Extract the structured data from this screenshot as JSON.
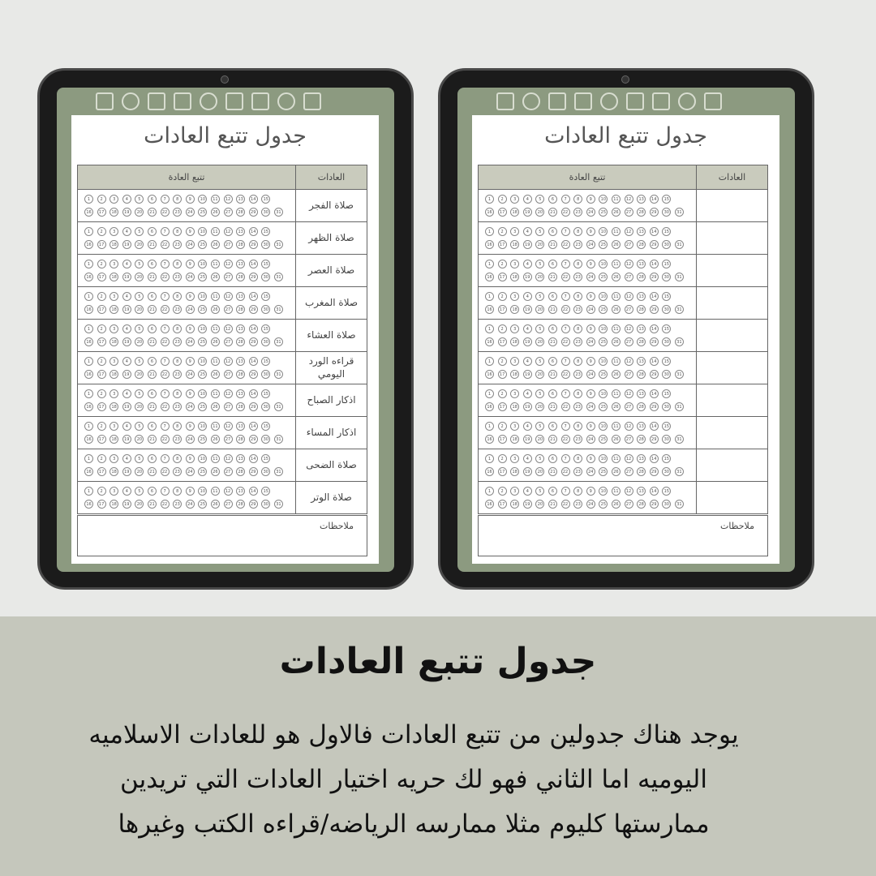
{
  "tablets": [
    {
      "title": "جدول تتبع العادات",
      "header": {
        "habits": "العادات",
        "tracking": "تتبع العادة"
      },
      "rows": [
        "صلاة الفجر",
        "صلاة الظهر",
        "صلاة العصر",
        "صلاة المغرب",
        "صلاة العشاء",
        "قراءه الورد اليومي",
        "اذكار الصباح",
        "اذكار المساء",
        "صلاة الضحى",
        "صلاة الوتر"
      ],
      "notes": "ملاحظات"
    },
    {
      "title": "جدول تتبع العادات",
      "header": {
        "habits": "العادات",
        "tracking": "تتبع العادة"
      },
      "notes": "ملاحظات"
    }
  ],
  "days": [
    1,
    2,
    3,
    4,
    5,
    6,
    7,
    8,
    9,
    10,
    11,
    12,
    13,
    14,
    15,
    16,
    17,
    18,
    19,
    20,
    21,
    22,
    23,
    24,
    25,
    26,
    27,
    28,
    29,
    30,
    31
  ],
  "caption": {
    "heading": "جدول تتبع العادات",
    "description": [
      "يوجد هناك جدولين من تتبع العادات فالاول هو للعادات الاسلاميه",
      "اليوميه اما الثاني فهو لك حريه اختيار العادات التي تريدين",
      "ممارستها كليوم مثلا ممارسه الرياضه/قراءه الكتب وغيرها"
    ]
  }
}
